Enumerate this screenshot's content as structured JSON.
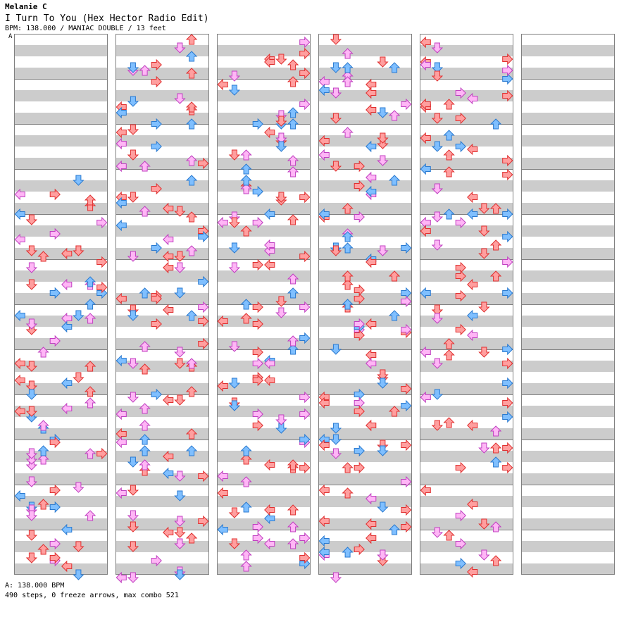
{
  "header": {
    "artist": "Melanie C",
    "title": "I Turn To You (Hex Hector Radio Edit)",
    "info": "BPM: 138.000 / MANIAC DOUBLE / 13 feet"
  },
  "bpm_marker": {
    "label": "A"
  },
  "footer": {
    "bpm_legend": "A: 138.000 BPM",
    "stats": "490 steps, 0 freeze arrows, max combo 521"
  },
  "colors": {
    "stripe": "#cccccc",
    "border": "#808080",
    "quarter_fill": "#ff9f9f",
    "quarter_stroke": "#e03030",
    "eighth_fill": "#7fbfff",
    "eighth_stroke": "#2a7ad0",
    "sixteenth_fill": "#ffb6f6",
    "sixteenth_stroke": "#c040c0"
  },
  "chart": {
    "columns": 6,
    "measures_per_column": 12,
    "lanes": 8,
    "total_steps": 490,
    "freeze_arrows": 0,
    "max_combo": 521
  }
}
